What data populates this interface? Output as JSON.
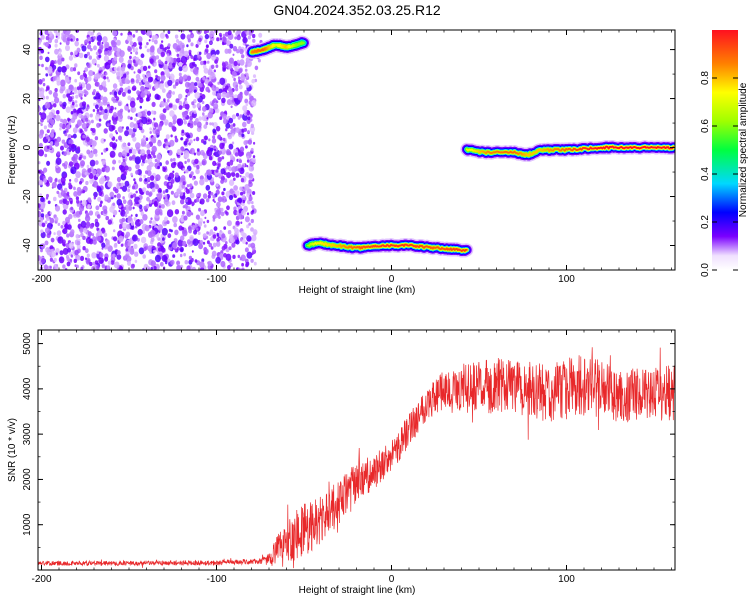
{
  "title": "GN04.2024.352.03.25.R12",
  "chart_data": [
    {
      "type": "heatmap",
      "xlabel": "Height of straight line (km)",
      "ylabel": "Frequency (Hz)",
      "xlim": [
        -202,
        162
      ],
      "ylim": [
        -50,
        48
      ],
      "x_ticks": [
        -200,
        -100,
        0,
        100
      ],
      "y_ticks": [
        -40,
        -20,
        0,
        20,
        40
      ],
      "colorbar": {
        "label": "Normalized spectral amplitude",
        "range": [
          0,
          1
        ],
        "ticks": [
          0.0,
          0.2,
          0.4,
          0.6,
          0.8
        ],
        "tick_labels": [
          "0.0",
          "0.2",
          "0.4",
          "0.6",
          "0.8"
        ]
      },
      "noise_region": {
        "x": [
          -202,
          -78
        ],
        "y": [
          -50,
          48
        ],
        "level": 0.05
      },
      "ridges": [
        {
          "x": [
            -80,
            -73,
            -66,
            -60,
            -54,
            -50
          ],
          "y": [
            39,
            40,
            42,
            41,
            42,
            43
          ],
          "amplitude": [
            0.85,
            0.9,
            0.7,
            0.8,
            0.6,
            0.5
          ]
        },
        {
          "x": [
            -48,
            -42,
            -32,
            -20,
            -5,
            10,
            25,
            43
          ],
          "y": [
            -40,
            -39,
            -40,
            -41,
            -40,
            -40,
            -41,
            -42
          ],
          "amplitude": [
            0.6,
            0.75,
            0.8,
            0.9,
            0.95,
            0.95,
            0.9,
            0.95
          ]
        },
        {
          "x": [
            43,
            55,
            70,
            78,
            85,
            100,
            120,
            161
          ],
          "y": [
            -1,
            -2,
            -2,
            -3,
            -1,
            -1,
            0,
            0
          ],
          "amplitude": [
            0.7,
            0.85,
            0.9,
            0.8,
            0.8,
            0.9,
            1.0,
            1.0
          ]
        }
      ],
      "grid": false
    },
    {
      "type": "line",
      "xlabel": "Height of straight line (km)",
      "ylabel": "SNR (10 * v/v)",
      "xlim": [
        -202,
        162
      ],
      "ylim": [
        0,
        5300
      ],
      "x_ticks": [
        -200,
        -100,
        0,
        100
      ],
      "y_ticks": [
        1000,
        2000,
        3000,
        4000,
        5000
      ],
      "color": "#e8282a",
      "trend": {
        "x": [
          -202,
          -150,
          -100,
          -75,
          -70,
          -60,
          -50,
          -40,
          -30,
          -20,
          -10,
          0,
          10,
          20,
          30,
          50,
          70,
          90,
          110,
          130,
          150,
          162
        ],
        "y": [
          150,
          150,
          160,
          190,
          250,
          650,
          900,
          1100,
          1500,
          1900,
          2150,
          2500,
          3100,
          3700,
          3950,
          4050,
          4050,
          3900,
          4100,
          3850,
          3900,
          3900
        ]
      },
      "noise_amplitude": {
        "x": [
          -202,
          -75,
          -70,
          -60,
          -50,
          -40,
          -30,
          -20,
          -10,
          0,
          20,
          40,
          60,
          90,
          110,
          130,
          150,
          162
        ],
        "y": [
          50,
          60,
          150,
          500,
          650,
          550,
          500,
          500,
          400,
          350,
          400,
          550,
          600,
          650,
          700,
          600,
          550,
          700
        ]
      },
      "grid": false
    }
  ]
}
